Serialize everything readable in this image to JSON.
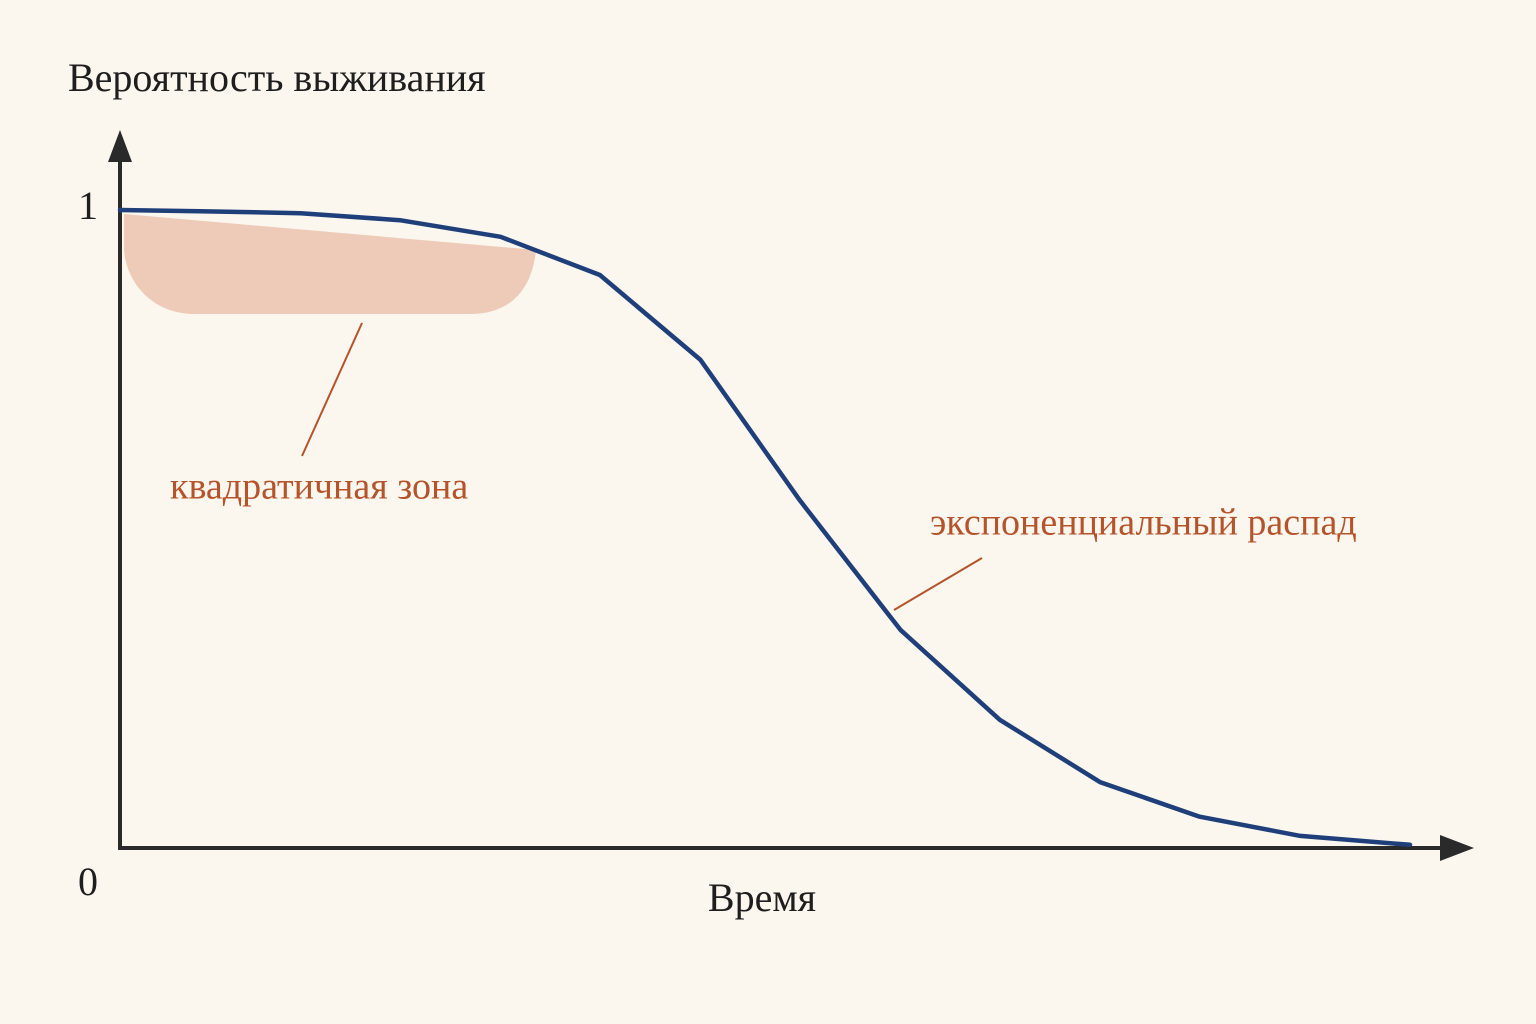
{
  "chart_data": {
    "type": "line",
    "y_label": "Вероятность выживания",
    "x_label": "Время",
    "annotations": [
      "квадратичная зона",
      "экспоненциальный распад"
    ],
    "x": [
      0,
      0.062,
      0.14,
      0.217,
      0.295,
      0.372,
      0.45,
      0.527,
      0.605,
      0.682,
      0.76,
      0.837,
      0.915,
      1.0
    ],
    "series": [
      {
        "color": "#1f3f7a",
        "values": [
          1.0,
          0.998,
          0.995,
          0.984,
          0.958,
          0.898,
          0.765,
          0.545,
          0.342,
          0.201,
          0.103,
          0.049,
          0.019,
          0.005
        ]
      }
    ],
    "xlim": [
      0,
      1.05
    ],
    "ylim": [
      0,
      1.12
    ],
    "yticks": [
      0,
      1
    ],
    "grid": false
  }
}
